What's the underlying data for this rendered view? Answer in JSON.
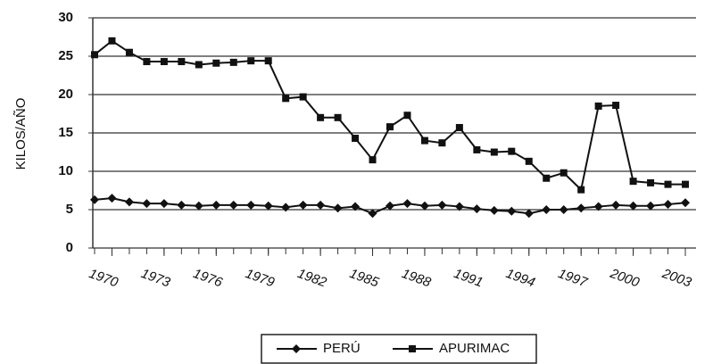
{
  "chart_data": {
    "type": "line",
    "y_label": "KILOS/AÑO",
    "x": [
      1969,
      1970,
      1971,
      1972,
      1973,
      1974,
      1975,
      1976,
      1977,
      1978,
      1979,
      1980,
      1981,
      1982,
      1983,
      1984,
      1985,
      1986,
      1987,
      1988,
      1989,
      1990,
      1991,
      1992,
      1993,
      1994,
      1995,
      1996,
      1997,
      1998,
      1999,
      2000,
      2001,
      2002,
      2003
    ],
    "series": [
      {
        "name": "PERÚ",
        "color": "#111111",
        "marker": "diamond",
        "values": [
          6.3,
          6.5,
          6,
          5.8,
          5.8,
          5.6,
          5.5,
          5.6,
          5.6,
          5.6,
          5.5,
          5.3,
          5.6,
          5.6,
          5.2,
          5.4,
          4.5,
          5.5,
          5.8,
          5.5,
          5.6,
          5.4,
          5.1,
          4.9,
          4.8,
          4.5,
          5,
          5,
          5.2,
          5.4,
          5.6,
          5.5,
          5.5,
          5.7,
          5.9
        ]
      },
      {
        "name": "APURIMAC",
        "color": "#111111",
        "marker": "square",
        "values": [
          25.2,
          27,
          25.5,
          24.3,
          24.3,
          24.3,
          23.9,
          24.1,
          24.2,
          24.4,
          24.4,
          19.5,
          19.7,
          17,
          17,
          14.3,
          11.5,
          15.8,
          17.3,
          14,
          13.7,
          15.7,
          12.8,
          12.5,
          12.6,
          11.3,
          9.1,
          9.8,
          7.6,
          18.5,
          18.6,
          8.7,
          8.5,
          8.3,
          8.3
        ]
      }
    ],
    "xlim": [
      1969,
      2003
    ],
    "xticks": [
      1970,
      1973,
      1976,
      1979,
      1982,
      1985,
      1988,
      1991,
      1994,
      1997,
      2000,
      2003
    ],
    "ylim": [
      0,
      30
    ],
    "yticks": [
      0,
      5,
      10,
      15,
      20,
      25,
      30
    ],
    "grid": true
  }
}
